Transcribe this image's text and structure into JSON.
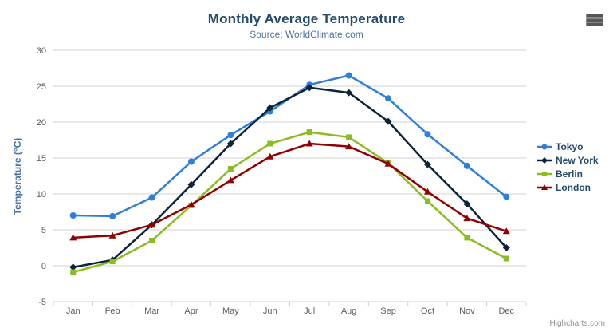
{
  "header": {
    "title": "Monthly Average Temperature",
    "subtitle": "Source: WorldClimate.com"
  },
  "credits": {
    "label": "Highcharts.com"
  },
  "menu": {
    "icon": "hamburger-menu-icon"
  },
  "chart_data": {
    "type": "line",
    "title": "Monthly Average Temperature",
    "subtitle": "Source: WorldClimate.com",
    "categories": [
      "Jan",
      "Feb",
      "Mar",
      "Apr",
      "May",
      "Jun",
      "Jul",
      "Aug",
      "Sep",
      "Oct",
      "Nov",
      "Dec"
    ],
    "xlabel": "",
    "ylabel": "Temperature (°C)",
    "ylim": [
      -5,
      30
    ],
    "ytick_step": 5,
    "grid": true,
    "legend_position": "right",
    "colors": {
      "title": "#274b6d",
      "subtitle": "#4d759e",
      "axis_label": "#606060",
      "axis_title": "#4572a7",
      "gridline": "#d0d0d0",
      "axis_line": "#c0d0e0",
      "legend_text": "#274b6d",
      "credits_text": "#909090"
    },
    "series": [
      {
        "name": "Tokyo",
        "color": "#2f7ed8",
        "marker": "circle",
        "values": [
          7.0,
          6.9,
          9.5,
          14.5,
          18.2,
          21.5,
          25.2,
          26.5,
          23.3,
          18.3,
          13.9,
          9.6
        ]
      },
      {
        "name": "New York",
        "color": "#0d233a",
        "marker": "diamond",
        "values": [
          -0.2,
          0.8,
          5.7,
          11.3,
          17.0,
          22.0,
          24.8,
          24.1,
          20.1,
          14.1,
          8.6,
          2.5
        ]
      },
      {
        "name": "Berlin",
        "color": "#8bbc21",
        "marker": "square",
        "values": [
          -0.9,
          0.6,
          3.5,
          8.4,
          13.5,
          17.0,
          18.6,
          17.9,
          14.3,
          9.0,
          3.9,
          1.0
        ]
      },
      {
        "name": "London",
        "color": "#910000",
        "marker": "triangle",
        "values": [
          3.9,
          4.2,
          5.7,
          8.5,
          11.9,
          15.2,
          17.0,
          16.6,
          14.2,
          10.3,
          6.6,
          4.8
        ]
      }
    ]
  }
}
